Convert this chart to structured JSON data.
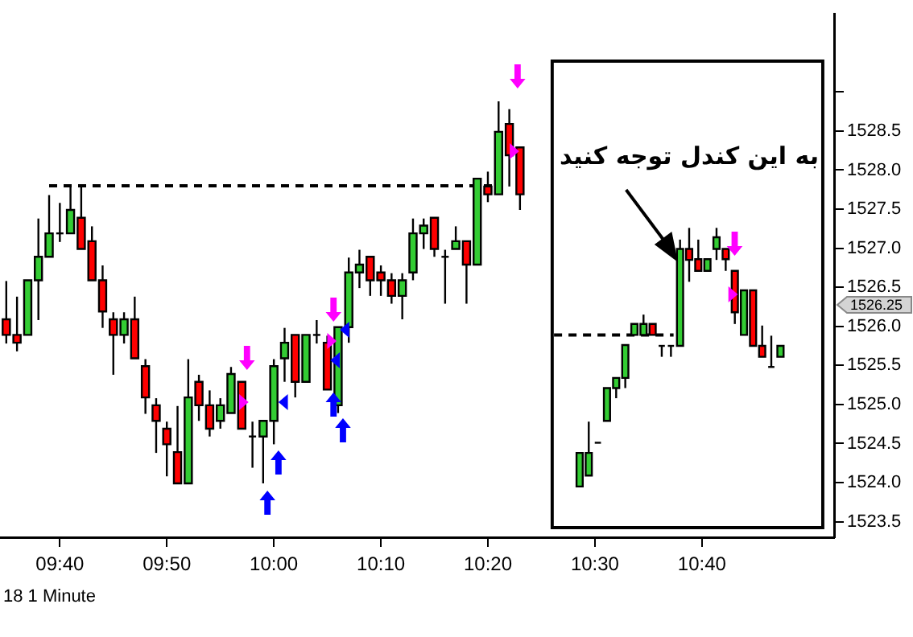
{
  "chart_data": {
    "type": "candlestick",
    "x": [
      9.5833,
      9.6,
      9.6167,
      9.6333,
      9.65,
      9.6667,
      9.6833,
      9.7,
      9.7167,
      9.7333,
      9.75,
      9.7667,
      9.7833,
      9.8,
      9.8167,
      9.8333,
      9.85,
      9.8667,
      9.8833,
      9.9,
      9.9167,
      9.9333,
      9.95,
      9.9667,
      9.9833,
      10,
      10.0167,
      10.0333,
      10.05,
      10.0667,
      10.0833,
      10.1,
      10.1167,
      10.1333,
      10.15,
      10.1667,
      10.1833,
      10.2,
      10.2167,
      10.2333,
      10.25,
      10.2667,
      10.2833,
      10.3,
      10.3167,
      10.3333,
      10.35,
      10.3667,
      10.3833,
      10.4762,
      10.4904,
      10.5046,
      10.5188,
      10.5331,
      10.5473,
      10.5615,
      10.5757,
      10.5899,
      10.6041,
      10.6184,
      10.6326,
      10.6468,
      10.661,
      10.6752,
      10.6894,
      10.7037,
      10.7179,
      10.7321,
      10.7463,
      10.7605,
      10.7747,
      10.789
    ],
    "ohlc": [
      [
        1526.09,
        1526.58,
        1525.78,
        1525.89
      ],
      [
        1525.89,
        1526.38,
        1525.68,
        1525.79
      ],
      [
        1525.89,
        1526.59,
        1525.89,
        1526.59
      ],
      [
        1526.59,
        1527.38,
        1526.08,
        1526.89
      ],
      [
        1526.89,
        1527.68,
        1526.89,
        1527.19
      ],
      [
        1527.19,
        1527.58,
        1527.08,
        1527.19
      ],
      [
        1527.19,
        1527.78,
        1527.19,
        1527.49
      ],
      [
        1527.39,
        1527.78,
        1526.99,
        1526.99
      ],
      [
        1527.09,
        1527.28,
        1526.59,
        1526.59
      ],
      [
        1526.59,
        1526.78,
        1525.98,
        1526.19
      ],
      [
        1526.09,
        1526.18,
        1525.38,
        1525.89
      ],
      [
        1525.89,
        1526.18,
        1525.78,
        1526.09
      ],
      [
        1526.09,
        1526.38,
        1525.59,
        1525.59
      ],
      [
        1525.49,
        1525.58,
        1524.88,
        1525.09
      ],
      [
        1524.99,
        1525.08,
        1524.38,
        1524.79
      ],
      [
        1524.69,
        1524.78,
        1524.08,
        1524.49
      ],
      [
        1524.39,
        1524.98,
        1523.99,
        1523.99
      ],
      [
        1523.99,
        1525.58,
        1523.99,
        1525.09
      ],
      [
        1525.29,
        1525.38,
        1524.79,
        1524.99
      ],
      [
        1524.99,
        1525.18,
        1524.59,
        1524.69
      ],
      [
        1524.79,
        1525.08,
        1524.69,
        1524.99
      ],
      [
        1524.89,
        1525.48,
        1524.89,
        1525.39
      ],
      [
        1525.29,
        1525.29,
        1524.69,
        1524.69
      ],
      [
        1524.59,
        1524.78,
        1524.19,
        1524.59
      ],
      [
        1524.59,
        1524.79,
        1523.99,
        1524.79
      ],
      [
        1524.79,
        1525.58,
        1524.49,
        1525.49
      ],
      [
        1525.59,
        1525.98,
        1525.29,
        1525.79
      ],
      [
        1525.89,
        1525.89,
        1525.09,
        1525.29
      ],
      [
        1525.29,
        1525.89,
        1525.29,
        1525.89
      ],
      [
        1525.89,
        1526.08,
        1525.78,
        1525.89
      ],
      [
        1525.79,
        1525.88,
        1525.19,
        1525.19
      ],
      [
        1524.99,
        1525.99,
        1524.89,
        1525.99
      ],
      [
        1525.99,
        1526.88,
        1525.79,
        1526.69
      ],
      [
        1526.69,
        1526.98,
        1526.49,
        1526.79
      ],
      [
        1526.89,
        1526.89,
        1526.39,
        1526.59
      ],
      [
        1526.69,
        1526.78,
        1526.39,
        1526.59
      ],
      [
        1526.59,
        1526.68,
        1526.29,
        1526.39
      ],
      [
        1526.39,
        1526.68,
        1526.09,
        1526.59
      ],
      [
        1526.69,
        1527.38,
        1526.59,
        1527.19
      ],
      [
        1527.19,
        1527.38,
        1526.99,
        1527.29
      ],
      [
        1527.39,
        1527.39,
        1526.89,
        1526.99
      ],
      [
        1526.89,
        1526.98,
        1526.29,
        1526.89
      ],
      [
        1526.99,
        1527.28,
        1526.99,
        1527.09
      ],
      [
        1527.09,
        1527.09,
        1526.29,
        1526.79
      ],
      [
        1526.79,
        1527.89,
        1526.79,
        1527.89
      ],
      [
        1527.79,
        1527.98,
        1527.59,
        1527.69
      ],
      [
        1527.69,
        1528.88,
        1527.69,
        1528.49
      ],
      [
        1528.59,
        1528.78,
        1527.79,
        1528.19
      ],
      [
        1528.29,
        1528.29,
        1527.49,
        1527.69
      ],
      [
        1523.95,
        1524.38,
        1523.95,
        1524.38
      ],
      [
        1524.09,
        1524.78,
        1524.09,
        1524.38
      ],
      [
        1524.51,
        1524.51,
        1524.51,
        1524.51
      ],
      [
        1524.79,
        1525.21,
        1524.79,
        1525.21
      ],
      [
        1525.21,
        1525.34,
        1525.08,
        1525.34
      ],
      [
        1525.34,
        1525.76,
        1525.21,
        1525.76
      ],
      [
        1525.89,
        1526.03,
        1525.89,
        1526.03
      ],
      [
        1525.89,
        1526.15,
        1525.89,
        1526.03
      ],
      [
        1526.03,
        1526.03,
        1525.89,
        1525.89
      ],
      [
        1525.75,
        1525.75,
        1525.61,
        1525.75
      ],
      [
        1525.75,
        1525.75,
        1525.61,
        1525.75
      ],
      [
        1525.75,
        1527.11,
        1525.75,
        1526.99
      ],
      [
        1526.99,
        1527.26,
        1526.57,
        1526.85
      ],
      [
        1526.86,
        1527.11,
        1526.71,
        1526.71
      ],
      [
        1526.71,
        1526.86,
        1526.71,
        1526.86
      ],
      [
        1526.99,
        1527.26,
        1526.85,
        1527.14
      ],
      [
        1526.99,
        1526.99,
        1526.71,
        1526.86
      ],
      [
        1526.71,
        1526.71,
        1526.03,
        1526.18
      ],
      [
        1525.89,
        1526.46,
        1525.89,
        1526.46
      ],
      [
        1526.46,
        1526.46,
        1525.75,
        1525.75
      ],
      [
        1525.75,
        1526.01,
        1525.61,
        1525.61
      ],
      [
        1525.48,
        1525.88,
        1525.48,
        1525.48
      ],
      [
        1525.61,
        1525.75,
        1525.61,
        1525.75
      ]
    ],
    "series": [
      {
        "type": "line",
        "x": [
          9.65,
          10.35
        ],
        "values": [
          1527.8,
          1527.8
        ],
        "color": "#000000",
        "line_style": "dashed"
      },
      {
        "type": "line",
        "x": [
          10.4363,
          10.6225
        ],
        "values": [
          1525.89,
          1525.89
        ],
        "color": "#000000",
        "line_style": "dashed"
      }
    ],
    "annotations": [
      "به این کندل توجه کنید",
      "18 1 Minute",
      "1526.25"
    ],
    "xlim": [
      9.5735,
      10.8725
    ],
    "xticks": [
      {
        "value": 9.6667,
        "label": "09:40"
      },
      {
        "value": 9.8333,
        "label": "09:50"
      },
      {
        "value": 10,
        "label": "10:00"
      },
      {
        "value": 10.1667,
        "label": "10:10"
      },
      {
        "value": 10.3333,
        "label": "10:20"
      },
      {
        "value": 10.5,
        "label": "10:30"
      },
      {
        "value": 10.6667,
        "label": "10:40"
      }
    ],
    "ylim": [
      1523.3,
      1530
    ],
    "yticks": [
      1523.5,
      {
        "value": 1524,
        "label": "1524.0"
      },
      1524.5,
      {
        "value": 1525,
        "label": "1525.0"
      },
      1525.5,
      {
        "value": 1526,
        "label": "1526.0"
      },
      1526.5,
      {
        "value": 1527,
        "label": "1527.0"
      },
      1527.5,
      {
        "value": 1528,
        "label": "1528.0"
      },
      1528.5,
      {
        "value": 1529,
        "label": null
      }
    ],
    "marker": "none",
    "grid": false,
    "legend": false
  }
}
